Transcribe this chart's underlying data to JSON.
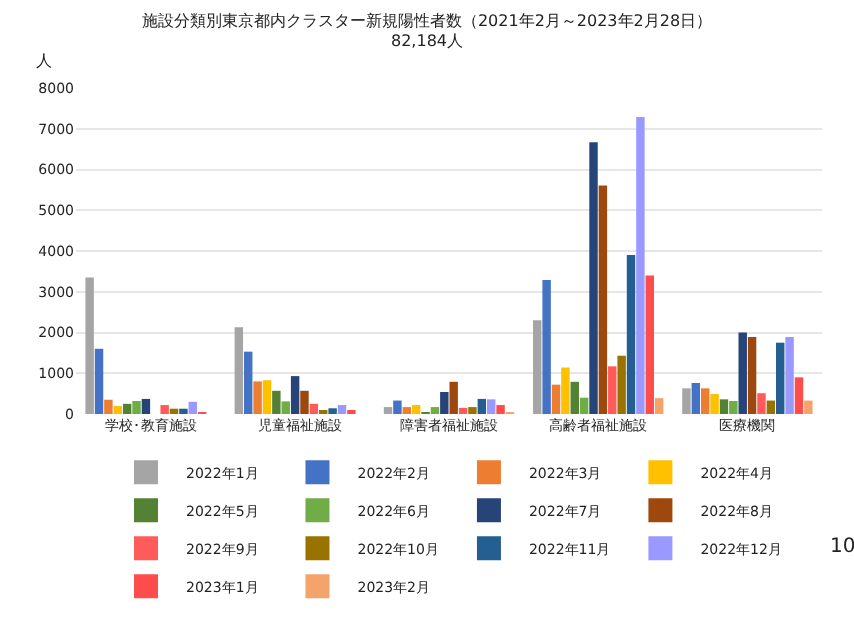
{
  "chart_data": {
    "type": "bar",
    "title": "施設分類別東京都内クラスター新規陽性者数（2021年2月～2023年2月28日）",
    "subtitle": "82,184人",
    "ylabel": "人",
    "categories": [
      "学校･教育施設",
      "児童福祉施設",
      "障害者福祉施設",
      "高齢者福祉施設",
      "医療機関"
    ],
    "series": [
      {
        "name": "2022年1月",
        "color": "#a5a5a5",
        "values": [
          3350,
          2130,
          170,
          2300,
          630
        ]
      },
      {
        "name": "2022年2月",
        "color": "#4472c4",
        "values": [
          1600,
          1530,
          330,
          3290,
          760
        ]
      },
      {
        "name": "2022年3月",
        "color": "#ed7d31",
        "values": [
          350,
          800,
          170,
          720,
          630
        ]
      },
      {
        "name": "2022年4月",
        "color": "#ffc000",
        "values": [
          200,
          830,
          220,
          1140,
          490
        ]
      },
      {
        "name": "2022年5月",
        "color": "#548235",
        "values": [
          250,
          570,
          20,
          790,
          360
        ]
      },
      {
        "name": "2022年6月",
        "color": "#70ad47",
        "values": [
          320,
          310,
          170,
          400,
          320
        ]
      },
      {
        "name": "2022年7月",
        "color": "#264478",
        "values": [
          370,
          930,
          540,
          6670,
          2000
        ]
      },
      {
        "name": "2022年8月",
        "color": "#9e480e",
        "values": [
          0,
          570,
          790,
          5610,
          1890
        ]
      },
      {
        "name": "2022年9月",
        "color": "#ff5b5b",
        "values": [
          220,
          250,
          150,
          1170,
          510
        ]
      },
      {
        "name": "2022年10月",
        "color": "#997300",
        "values": [
          130,
          70,
          170,
          1430,
          330
        ]
      },
      {
        "name": "2022年11月",
        "color": "#255e91",
        "values": [
          130,
          140,
          370,
          3900,
          1750
        ]
      },
      {
        "name": "2022年12月",
        "color": "#9999ff",
        "values": [
          300,
          220,
          360,
          7290,
          1890
        ]
      },
      {
        "name": "2023年1月",
        "color": "#ff4d4d",
        "values": [
          10,
          80,
          220,
          3400,
          900
        ]
      },
      {
        "name": "2023年2月",
        "color": "#f4a46a",
        "values": [
          0,
          0,
          10,
          390,
          330
        ]
      }
    ],
    "ylim": [
      0,
      8000
    ],
    "yticks": [
      0,
      1000,
      2000,
      3000,
      4000,
      5000,
      6000,
      7000,
      8000
    ],
    "grid": "y",
    "legend": "bottom",
    "annotations": [
      "10"
    ]
  }
}
